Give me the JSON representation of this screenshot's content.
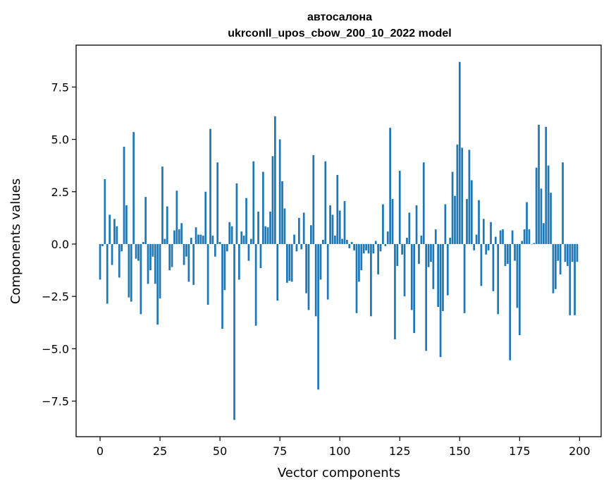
{
  "chart_data": {
    "type": "bar",
    "title_line1": "автосалона",
    "title_line2": "ukrconll_upos_cbow_200_10_2022 model",
    "xlabel": "Vector components",
    "ylabel": "Components values",
    "xlim": [
      -10,
      209
    ],
    "ylim": [
      -9.2,
      9.5
    ],
    "x_ticks": [
      0,
      25,
      50,
      75,
      100,
      125,
      150,
      175,
      200
    ],
    "y_ticks": [
      7.5,
      5.0,
      2.5,
      0.0,
      -2.5,
      -5.0,
      -7.5
    ],
    "y_tick_labels": [
      "7.5",
      "5.0",
      "2.5",
      "0.0",
      "−2.5",
      "−5.0",
      "−7.5"
    ],
    "x_tick_labels": [
      "0",
      "25",
      "50",
      "75",
      "100",
      "125",
      "150",
      "175",
      "200"
    ],
    "bar_color": "#1f77b4",
    "values": [
      -1.7,
      -0.1,
      3.1,
      -2.85,
      1.4,
      -1.0,
      1.2,
      0.85,
      -1.6,
      -0.35,
      4.65,
      1.85,
      -2.55,
      -2.75,
      5.35,
      -0.7,
      -0.8,
      -3.35,
      0.1,
      2.25,
      -1.9,
      -1.25,
      -0.6,
      -1.9,
      -3.85,
      -2.6,
      3.7,
      0.25,
      1.8,
      -1.25,
      -1.1,
      0.65,
      2.55,
      0.7,
      1.0,
      -1.0,
      -0.6,
      -1.8,
      0.3,
      -1.95,
      0.8,
      0.45,
      0.45,
      0.4,
      2.5,
      -2.9,
      5.5,
      0.4,
      -0.6,
      3.9,
      0.1,
      -4.05,
      -2.2,
      -0.35,
      1.05,
      0.85,
      -8.4,
      2.9,
      -1.7,
      0.6,
      0.4,
      2.2,
      -0.8,
      0.25,
      3.95,
      -3.9,
      1.55,
      -1.15,
      3.45,
      0.85,
      0.8,
      1.55,
      4.2,
      6.1,
      -2.7,
      5.0,
      3.0,
      1.7,
      -1.85,
      -1.75,
      -1.8,
      0.45,
      -0.35,
      1.25,
      -0.25,
      1.5,
      -2.35,
      -3.15,
      0.9,
      4.25,
      -3.45,
      -6.95,
      -1.7,
      0.2,
      3.95,
      -2.65,
      1.85,
      1.4,
      0.4,
      3.3,
      1.6,
      0.25,
      2.05,
      0.2,
      -0.2,
      0.1,
      -0.3,
      -3.3,
      -1.8,
      -1.25,
      -0.45,
      -0.3,
      -0.45,
      -3.45,
      -0.45,
      0.15,
      -1.45,
      -0.35,
      1.9,
      -0.1,
      0.6,
      5.55,
      2.15,
      -4.55,
      -1.05,
      3.5,
      -0.5,
      -2.5,
      0.3,
      1.5,
      -3.15,
      -4.25,
      1.85,
      -0.95,
      0.4,
      3.9,
      -5.1,
      -1.1,
      -0.85,
      -2.15,
      0.7,
      -3.0,
      -5.4,
      -3.2,
      1.9,
      -2.45,
      0.3,
      3.45,
      2.3,
      4.75,
      8.7,
      4.6,
      -3.3,
      2.15,
      4.5,
      3.05,
      -0.3,
      0.45,
      2.1,
      -2.0,
      1.2,
      -0.5,
      -0.3,
      1.05,
      -2.25,
      0.35,
      -3.35,
      0.65,
      0.7,
      -1.05,
      -0.95,
      -5.55,
      0.65,
      -0.8,
      -3.05,
      -4.35,
      0.15,
      0.7,
      2.0,
      0.7,
      0.0,
      0.05,
      3.65,
      5.7,
      2.65,
      1.0,
      5.6,
      3.75,
      2.45,
      -2.35,
      -2.15,
      -0.8,
      -1.45,
      3.9,
      -0.85,
      -1.05,
      -3.4,
      -0.85,
      -3.4,
      -0.85
    ]
  }
}
